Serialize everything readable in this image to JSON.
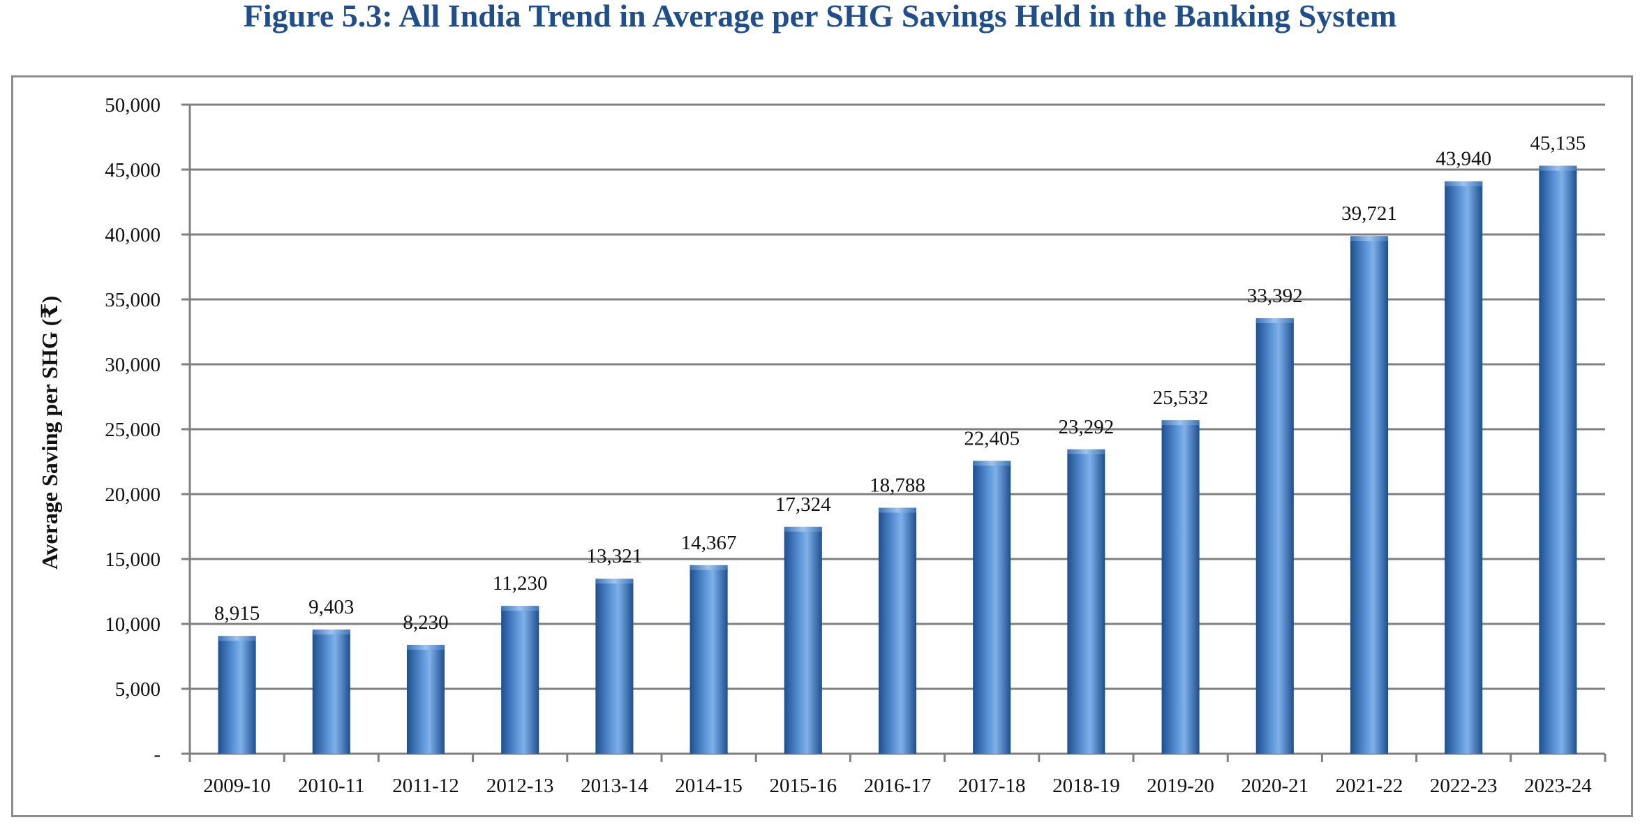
{
  "figure_title": "Figure 5.3: All India Trend in Average per SHG Savings Held in the Banking System",
  "colors": {
    "title": "#1f4e8c",
    "bar_dark": "#1d4f8f",
    "bar_mid": "#5a93d6",
    "bar_light": "#7fb0ea",
    "grid": "#808080",
    "frame": "#8c8c8c"
  },
  "chart_data": {
    "type": "bar",
    "title": "",
    "xlabel": "",
    "ylabel": "Average Saving per SHG (₹)",
    "categories": [
      "2009-10",
      "2010-11",
      "2011-12",
      "2012-13",
      "2013-14",
      "2014-15",
      "2015-16",
      "2016-17",
      "2017-18",
      "2018-19",
      "2019-20",
      "2020-21",
      "2021-22",
      "2022-23",
      "2023-24"
    ],
    "values": [
      8915,
      9403,
      8230,
      11230,
      13321,
      14367,
      17324,
      18788,
      22405,
      23292,
      25532,
      33392,
      39721,
      43940,
      45135
    ],
    "data_labels": [
      "8,915",
      "9,403",
      "8,230",
      "11,230",
      "13,321",
      "14,367",
      "17,324",
      "18,788",
      "22,405",
      "23,292",
      "25,532",
      "33,392",
      "39,721",
      "43,940",
      "45,135"
    ],
    "ylim": [
      0,
      50000
    ],
    "yticks": [
      0,
      5000,
      10000,
      15000,
      20000,
      25000,
      30000,
      35000,
      40000,
      45000,
      50000
    ],
    "ytick_labels": [
      "-",
      "5,000",
      "10,000",
      "15,000",
      "20,000",
      "25,000",
      "30,000",
      "35,000",
      "40,000",
      "45,000",
      "50,000"
    ],
    "grid": true,
    "legend": "none"
  }
}
